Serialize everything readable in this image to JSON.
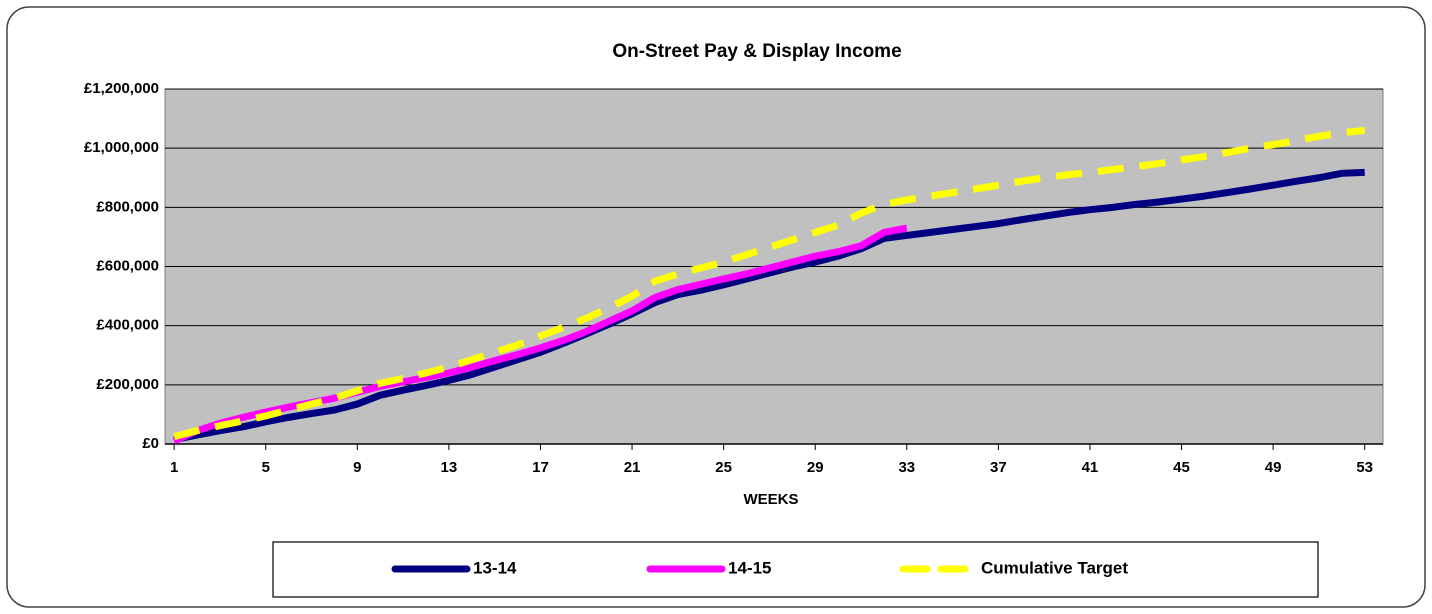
{
  "chart_data": {
    "type": "line",
    "title": "On-Street Pay & Display Income",
    "x_label": "WEEKS",
    "x": [
      1,
      2,
      3,
      4,
      5,
      6,
      7,
      8,
      9,
      10,
      11,
      12,
      13,
      14,
      15,
      16,
      17,
      18,
      19,
      20,
      21,
      22,
      23,
      24,
      25,
      26,
      27,
      28,
      29,
      30,
      31,
      32,
      33,
      34,
      35,
      36,
      37,
      38,
      39,
      40,
      41,
      42,
      43,
      44,
      45,
      46,
      47,
      48,
      49,
      50,
      51,
      52,
      53
    ],
    "series": [
      {
        "name": "13-14",
        "color": "#000080",
        "dashed": false,
        "values": [
          15000,
          30000,
          45000,
          58000,
          75000,
          90000,
          103000,
          115000,
          135000,
          165000,
          182000,
          198000,
          215000,
          235000,
          260000,
          285000,
          310000,
          340000,
          372000,
          405000,
          440000,
          478000,
          505000,
          520000,
          538000,
          558000,
          578000,
          598000,
          615000,
          635000,
          660000,
          695000,
          705000,
          715000,
          725000,
          735000,
          745000,
          758000,
          770000,
          782000,
          792000,
          800000,
          810000,
          818000,
          828000,
          838000,
          850000,
          862000,
          875000,
          888000,
          900000,
          915000,
          918000
        ]
      },
      {
        "name": "14-15",
        "color": "#ff00ff",
        "dashed": false,
        "values": [
          10000,
          45000,
          70000,
          90000,
          108000,
          125000,
          140000,
          155000,
          175000,
          195000,
          210000,
          225000,
          240000,
          260000,
          282000,
          302000,
          325000,
          350000,
          380000,
          415000,
          450000,
          495000,
          522000,
          540000,
          558000,
          575000,
          595000,
          615000,
          635000,
          650000,
          670000,
          715000,
          730000,
          null,
          null,
          null,
          null,
          null,
          null,
          null,
          null,
          null,
          null,
          null,
          null,
          null,
          null,
          null,
          null,
          null,
          null,
          null,
          null
        ]
      },
      {
        "name": "Cumulative Target",
        "color": "#ffff00",
        "dashed": true,
        "values": [
          25000,
          45000,
          62000,
          78000,
          95000,
          115000,
          135000,
          155000,
          180000,
          205000,
          222000,
          240000,
          260000,
          285000,
          310000,
          335000,
          365000,
          395000,
          425000,
          460000,
          500000,
          550000,
          575000,
          595000,
          615000,
          640000,
          665000,
          690000,
          715000,
          740000,
          780000,
          810000,
          825000,
          838000,
          850000,
          862000,
          875000,
          888000,
          900000,
          910000,
          918000,
          928000,
          938000,
          948000,
          960000,
          972000,
          985000,
          1000000,
          1012000,
          1025000,
          1040000,
          1052000,
          1060000
        ]
      }
    ],
    "xlim": [
      0.6,
      53.8
    ],
    "xticks": [
      1,
      5,
      9,
      13,
      17,
      21,
      25,
      29,
      33,
      37,
      41,
      45,
      49,
      53
    ],
    "ylim": [
      0,
      1200000
    ],
    "yticks": [
      {
        "value": 0,
        "label": "£0"
      },
      {
        "value": 200000,
        "label": "£200,000"
      },
      {
        "value": 400000,
        "label": "£400,000"
      },
      {
        "value": 600000,
        "label": "£600,000"
      },
      {
        "value": 800000,
        "label": "£800,000"
      },
      {
        "value": 1000000,
        "label": "£1,000,000"
      },
      {
        "value": 1200000,
        "label": "£1,200,000"
      }
    ],
    "grid": true,
    "plot_background": "#c0c0c0",
    "legend": "bottom"
  }
}
